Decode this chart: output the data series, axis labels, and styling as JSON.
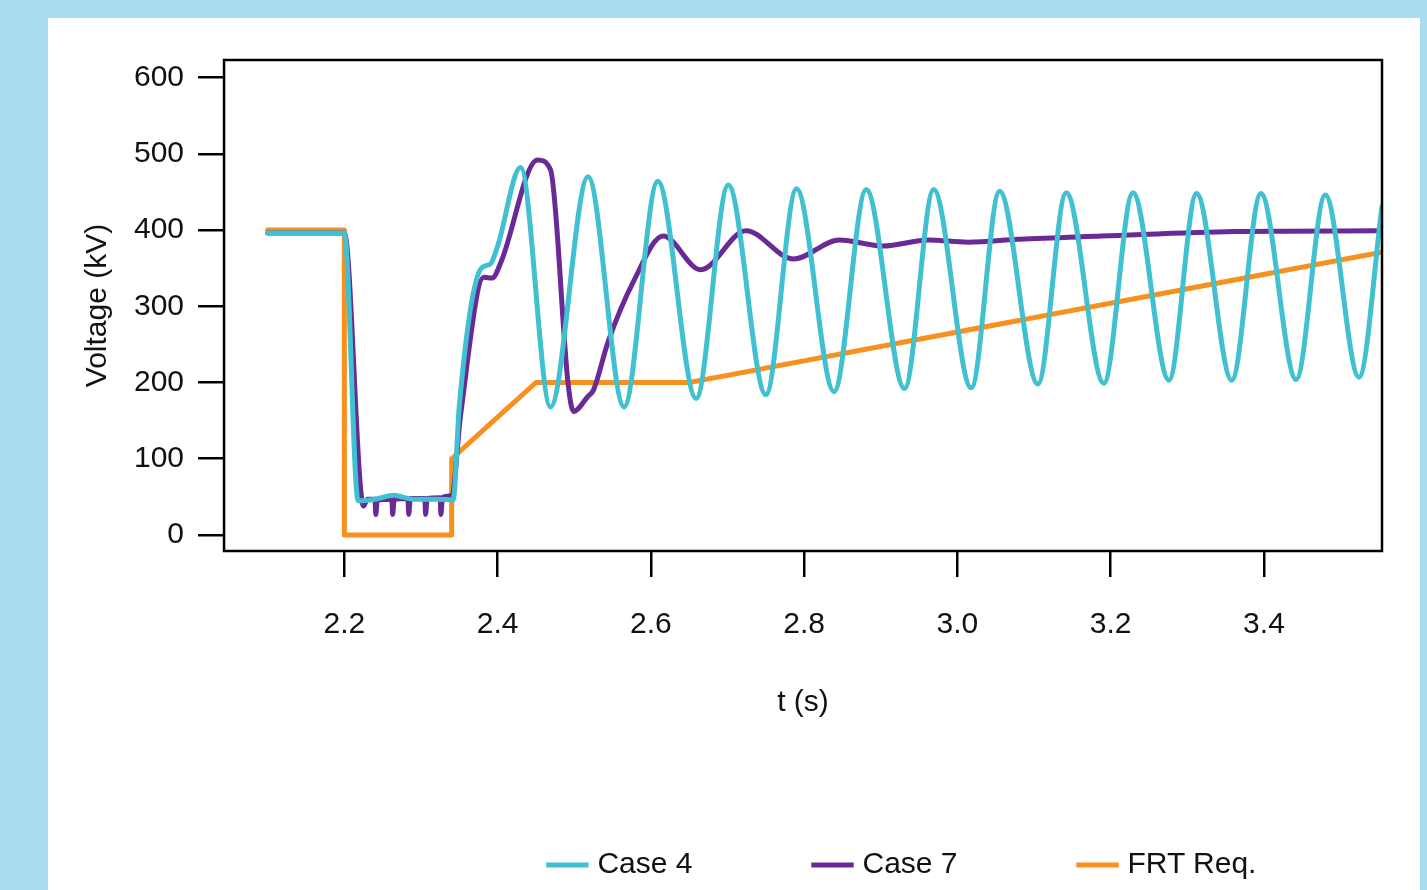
{
  "chart_data": {
    "type": "line",
    "xlabel": "t (s)",
    "ylabel": "Voltage (kV)",
    "xlim": [
      2.043,
      3.554
    ],
    "ylim": [
      -21,
      623
    ],
    "xticks": [
      2.2,
      2.4,
      2.6,
      2.8,
      {
        "value": 3,
        "label": "3.0"
      },
      3.2,
      3.4
    ],
    "yticks": [
      0,
      100,
      200,
      300,
      400,
      500,
      600
    ],
    "grid": false,
    "legend": "bottom right",
    "marker": "none",
    "line_style": "solid",
    "series": [
      {
        "name": "Case 4",
        "color": "#40c0d0",
        "x": [
          2.1,
          2.2,
          2.218,
          2.24,
          2.265,
          2.275,
          2.29,
          2.32,
          2.342,
          2.35,
          2.378,
          2.39,
          2.4,
          2.43,
          2.469,
          2.518,
          2.565,
          2.609,
          2.659,
          2.701,
          2.75,
          2.79,
          2.839,
          2.881,
          2.931,
          2.969,
          3.018,
          3.055,
          3.105,
          3.142,
          3.191,
          3.229,
          3.276,
          3.312,
          3.358,
          3.396,
          3.442,
          3.48,
          3.524,
          3.554
        ],
        "values": [
          396,
          396,
          45,
          47,
          52,
          50,
          47,
          47,
          46,
          170,
          349,
          355,
          379,
          482,
          168,
          470,
          168,
          464,
          179,
          459,
          184,
          454,
          188,
          453,
          192,
          453,
          193,
          451,
          198,
          449,
          199,
          449,
          203,
          448,
          203,
          448,
          204,
          446,
          207,
          431
        ]
      },
      {
        "name": "Case 7",
        "color": "#6a2a96",
        "x": [
          2.1,
          2.2,
          2.225,
          2.23,
          2.24,
          2.241,
          2.243,
          2.262,
          2.263,
          2.265,
          2.283,
          2.284,
          2.286,
          2.305,
          2.306,
          2.308,
          2.325,
          2.326,
          2.328,
          2.34,
          2.352,
          2.382,
          2.393,
          2.404,
          2.452,
          2.469,
          2.492,
          2.499,
          2.518,
          2.525,
          2.544,
          2.578,
          2.616,
          2.665,
          2.724,
          2.786,
          2.846,
          2.903,
          2.962,
          3.014,
          3.081,
          3.188,
          3.362,
          3.552
        ],
        "values": [
          396,
          396,
          38,
          47,
          47,
          27,
          46,
          47,
          27,
          47,
          48,
          27,
          48,
          48,
          27,
          48,
          49,
          27,
          49,
          52,
          160,
          338,
          337,
          357,
          492,
          479,
          198,
          162,
          182,
          190,
          253,
          334,
          392,
          348,
          399,
          362,
          387,
          379,
          387,
          384,
          388,
          392,
          398,
          399
        ]
      },
      {
        "name": "FRT Req.",
        "color": "#f7901e",
        "x": [
          2.1,
          2.2,
          2.2,
          2.34,
          2.34,
          2.45,
          2.65,
          3.554
        ],
        "values": [
          400,
          400,
          0,
          0,
          100,
          200,
          200,
          371
        ]
      }
    ]
  }
}
